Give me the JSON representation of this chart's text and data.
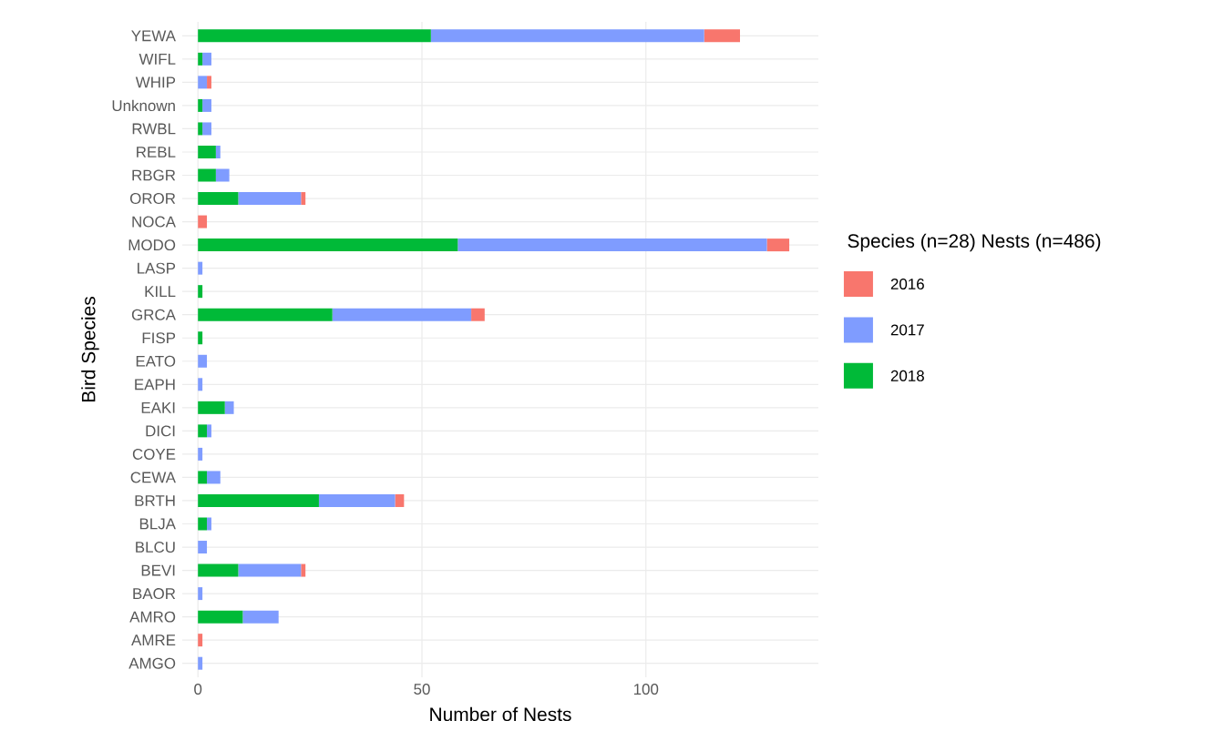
{
  "chart_data": {
    "type": "bar",
    "orientation": "horizontal",
    "stacked": true,
    "xlabel": "Number of Nests",
    "ylabel": "Bird Species",
    "legend_title": "Species (n=28) Nests (n=486)",
    "legend": "right",
    "grid": true,
    "xlim": [
      -3.5,
      138.5
    ],
    "xticks": [
      0,
      50,
      100
    ],
    "categories": [
      "YEWA",
      "WIFL",
      "WHIP",
      "Unknown",
      "RWBL",
      "REBL",
      "RBGR",
      "OROR",
      "NOCA",
      "MODO",
      "LASP",
      "KILL",
      "GRCA",
      "FISP",
      "EATO",
      "EAPH",
      "EAKI",
      "DICI",
      "COYE",
      "CEWA",
      "BRTH",
      "BLJA",
      "BLCU",
      "BEVI",
      "BAOR",
      "AMRO",
      "AMRE",
      "AMGO"
    ],
    "series": [
      {
        "name": "2018",
        "color": "#00BA38",
        "values": [
          52,
          1,
          0,
          1,
          1,
          4,
          4,
          9,
          0,
          58,
          0,
          1,
          30,
          1,
          0,
          0,
          6,
          2,
          0,
          2,
          27,
          2,
          0,
          9,
          0,
          10,
          0,
          0
        ]
      },
      {
        "name": "2017",
        "color": "#7F9CFF",
        "values": [
          61,
          2,
          2,
          2,
          2,
          1,
          3,
          14,
          0,
          69,
          1,
          0,
          31,
          0,
          2,
          1,
          2,
          1,
          1,
          3,
          17,
          1,
          2,
          14,
          1,
          8,
          0,
          1
        ]
      },
      {
        "name": "2016",
        "color": "#F8766D",
        "values": [
          8,
          0,
          1,
          0,
          0,
          0,
          0,
          1,
          2,
          5,
          0,
          0,
          3,
          0,
          0,
          0,
          0,
          0,
          0,
          0,
          2,
          0,
          0,
          1,
          0,
          0,
          1,
          0
        ]
      }
    ]
  }
}
